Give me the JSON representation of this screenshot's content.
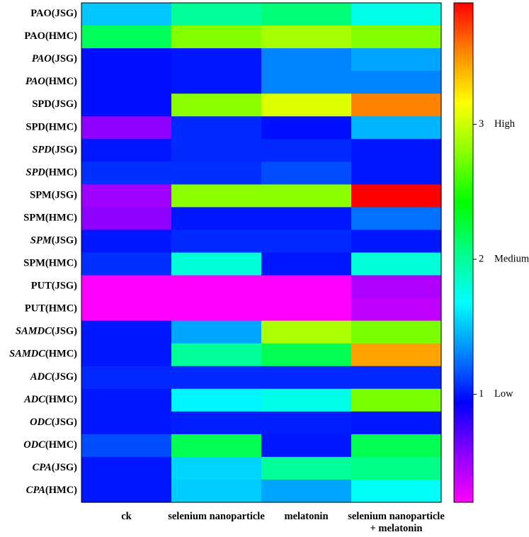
{
  "chart_data": {
    "type": "heatmap",
    "title": "",
    "xlabel": "",
    "ylabel": "",
    "columns": [
      {
        "line1": "ck",
        "line2": ""
      },
      {
        "line1": "selenium nanoparticle",
        "line2": ""
      },
      {
        "line1": "melatonin",
        "line2": ""
      },
      {
        "line1": "selenium nanoparticle",
        "line2": "+ melatonin"
      }
    ],
    "rows": [
      {
        "gene": "PAO",
        "tissue": "(JSG)",
        "italic": false
      },
      {
        "gene": "PAO",
        "tissue": "(HMC)",
        "italic": false
      },
      {
        "gene": "PAO",
        "tissue": "(JSG)",
        "italic": true
      },
      {
        "gene": "PAO",
        "tissue": "(HMC)",
        "italic": true
      },
      {
        "gene": "SPD",
        "tissue": "(JSG)",
        "italic": false
      },
      {
        "gene": "SPD",
        "tissue": "(HMC)",
        "italic": false
      },
      {
        "gene": "SPD",
        "tissue": "(JSG)",
        "italic": true
      },
      {
        "gene": "SPD",
        "tissue": "(HMC)",
        "italic": true
      },
      {
        "gene": "SPM",
        "tissue": "(JSG)",
        "italic": false
      },
      {
        "gene": "SPM",
        "tissue": "(HMC)",
        "italic": false
      },
      {
        "gene": "SPM",
        "tissue": "(JSG)",
        "italic": true
      },
      {
        "gene": "SPM",
        "tissue": "(HMC)",
        "italic": false
      },
      {
        "gene": "PUT",
        "tissue": "(JSG)",
        "italic": false
      },
      {
        "gene": "PUT",
        "tissue": "(HMC)",
        "italic": false
      },
      {
        "gene": "SAMDC",
        "tissue": "(JSG)",
        "italic": true
      },
      {
        "gene": "SAMDC",
        "tissue": "(HMC)",
        "italic": true
      },
      {
        "gene": "ADC",
        "tissue": "(JSG)",
        "italic": true
      },
      {
        "gene": "ADC",
        "tissue": "(HMC)",
        "italic": true
      },
      {
        "gene": "ODC",
        "tissue": "(JSG)",
        "italic": true
      },
      {
        "gene": "ODC",
        "tissue": "(HMC)",
        "italic": true
      },
      {
        "gene": "CPA",
        "tissue": "(JSG)",
        "italic": true
      },
      {
        "gene": "CPA",
        "tissue": "(HMC)",
        "italic": true
      }
    ],
    "values": [
      [
        1.5,
        2.0,
        2.1,
        1.75
      ],
      [
        2.18,
        2.78,
        2.88,
        2.78
      ],
      [
        0.98,
        1.0,
        1.3,
        1.4
      ],
      [
        0.98,
        1.0,
        1.3,
        1.3
      ],
      [
        0.98,
        2.8,
        3.05,
        3.55
      ],
      [
        0.55,
        1.05,
        0.98,
        1.45
      ],
      [
        1.0,
        1.05,
        1.05,
        1.0
      ],
      [
        1.07,
        1.07,
        1.15,
        1.0
      ],
      [
        0.5,
        2.8,
        2.8,
        3.9
      ],
      [
        0.55,
        1.0,
        1.0,
        1.25
      ],
      [
        1.0,
        1.05,
        1.05,
        1.0
      ],
      [
        1.07,
        1.8,
        1.0,
        1.8
      ],
      [
        0.2,
        0.2,
        0.2,
        0.45
      ],
      [
        0.2,
        0.2,
        0.2,
        0.4
      ],
      [
        1.0,
        1.4,
        2.9,
        2.75
      ],
      [
        1.0,
        2.0,
        2.2,
        3.45
      ],
      [
        1.05,
        1.05,
        1.05,
        1.05
      ],
      [
        1.0,
        1.65,
        1.75,
        2.75
      ],
      [
        1.0,
        1.02,
        1.02,
        1.0
      ],
      [
        1.15,
        2.2,
        1.0,
        2.2
      ],
      [
        1.0,
        1.55,
        2.0,
        2.05
      ],
      [
        1.0,
        1.52,
        1.4,
        1.7
      ]
    ],
    "color_range": [
      0.2,
      3.9
    ],
    "colorbar": {
      "ticks": [
        {
          "value": 1,
          "tick": "1",
          "level": "Low"
        },
        {
          "value": 2,
          "tick": "2",
          "level": "Medium"
        },
        {
          "value": 3,
          "tick": "3",
          "level": "High"
        }
      ],
      "stops": [
        "#ff00ff",
        "#8800ff",
        "#0000ff",
        "#0088ff",
        "#00ffff",
        "#00ff88",
        "#00ff00",
        "#88ff00",
        "#ffff00",
        "#ff8800",
        "#ff0000"
      ]
    }
  }
}
